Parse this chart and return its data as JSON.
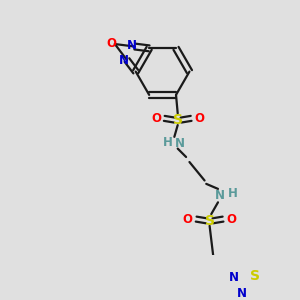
{
  "background_color": "#e0e0e0",
  "figsize": [
    3.0,
    3.0
  ],
  "dpi": 100,
  "colors": {
    "bond": "#1a1a1a",
    "N": "#0000cc",
    "O": "#ff0000",
    "S": "#cccc00",
    "NH": "#5a9a9a",
    "bg": "#e0e0e0"
  },
  "font_size": 8.5,
  "bond_lw": 1.6
}
